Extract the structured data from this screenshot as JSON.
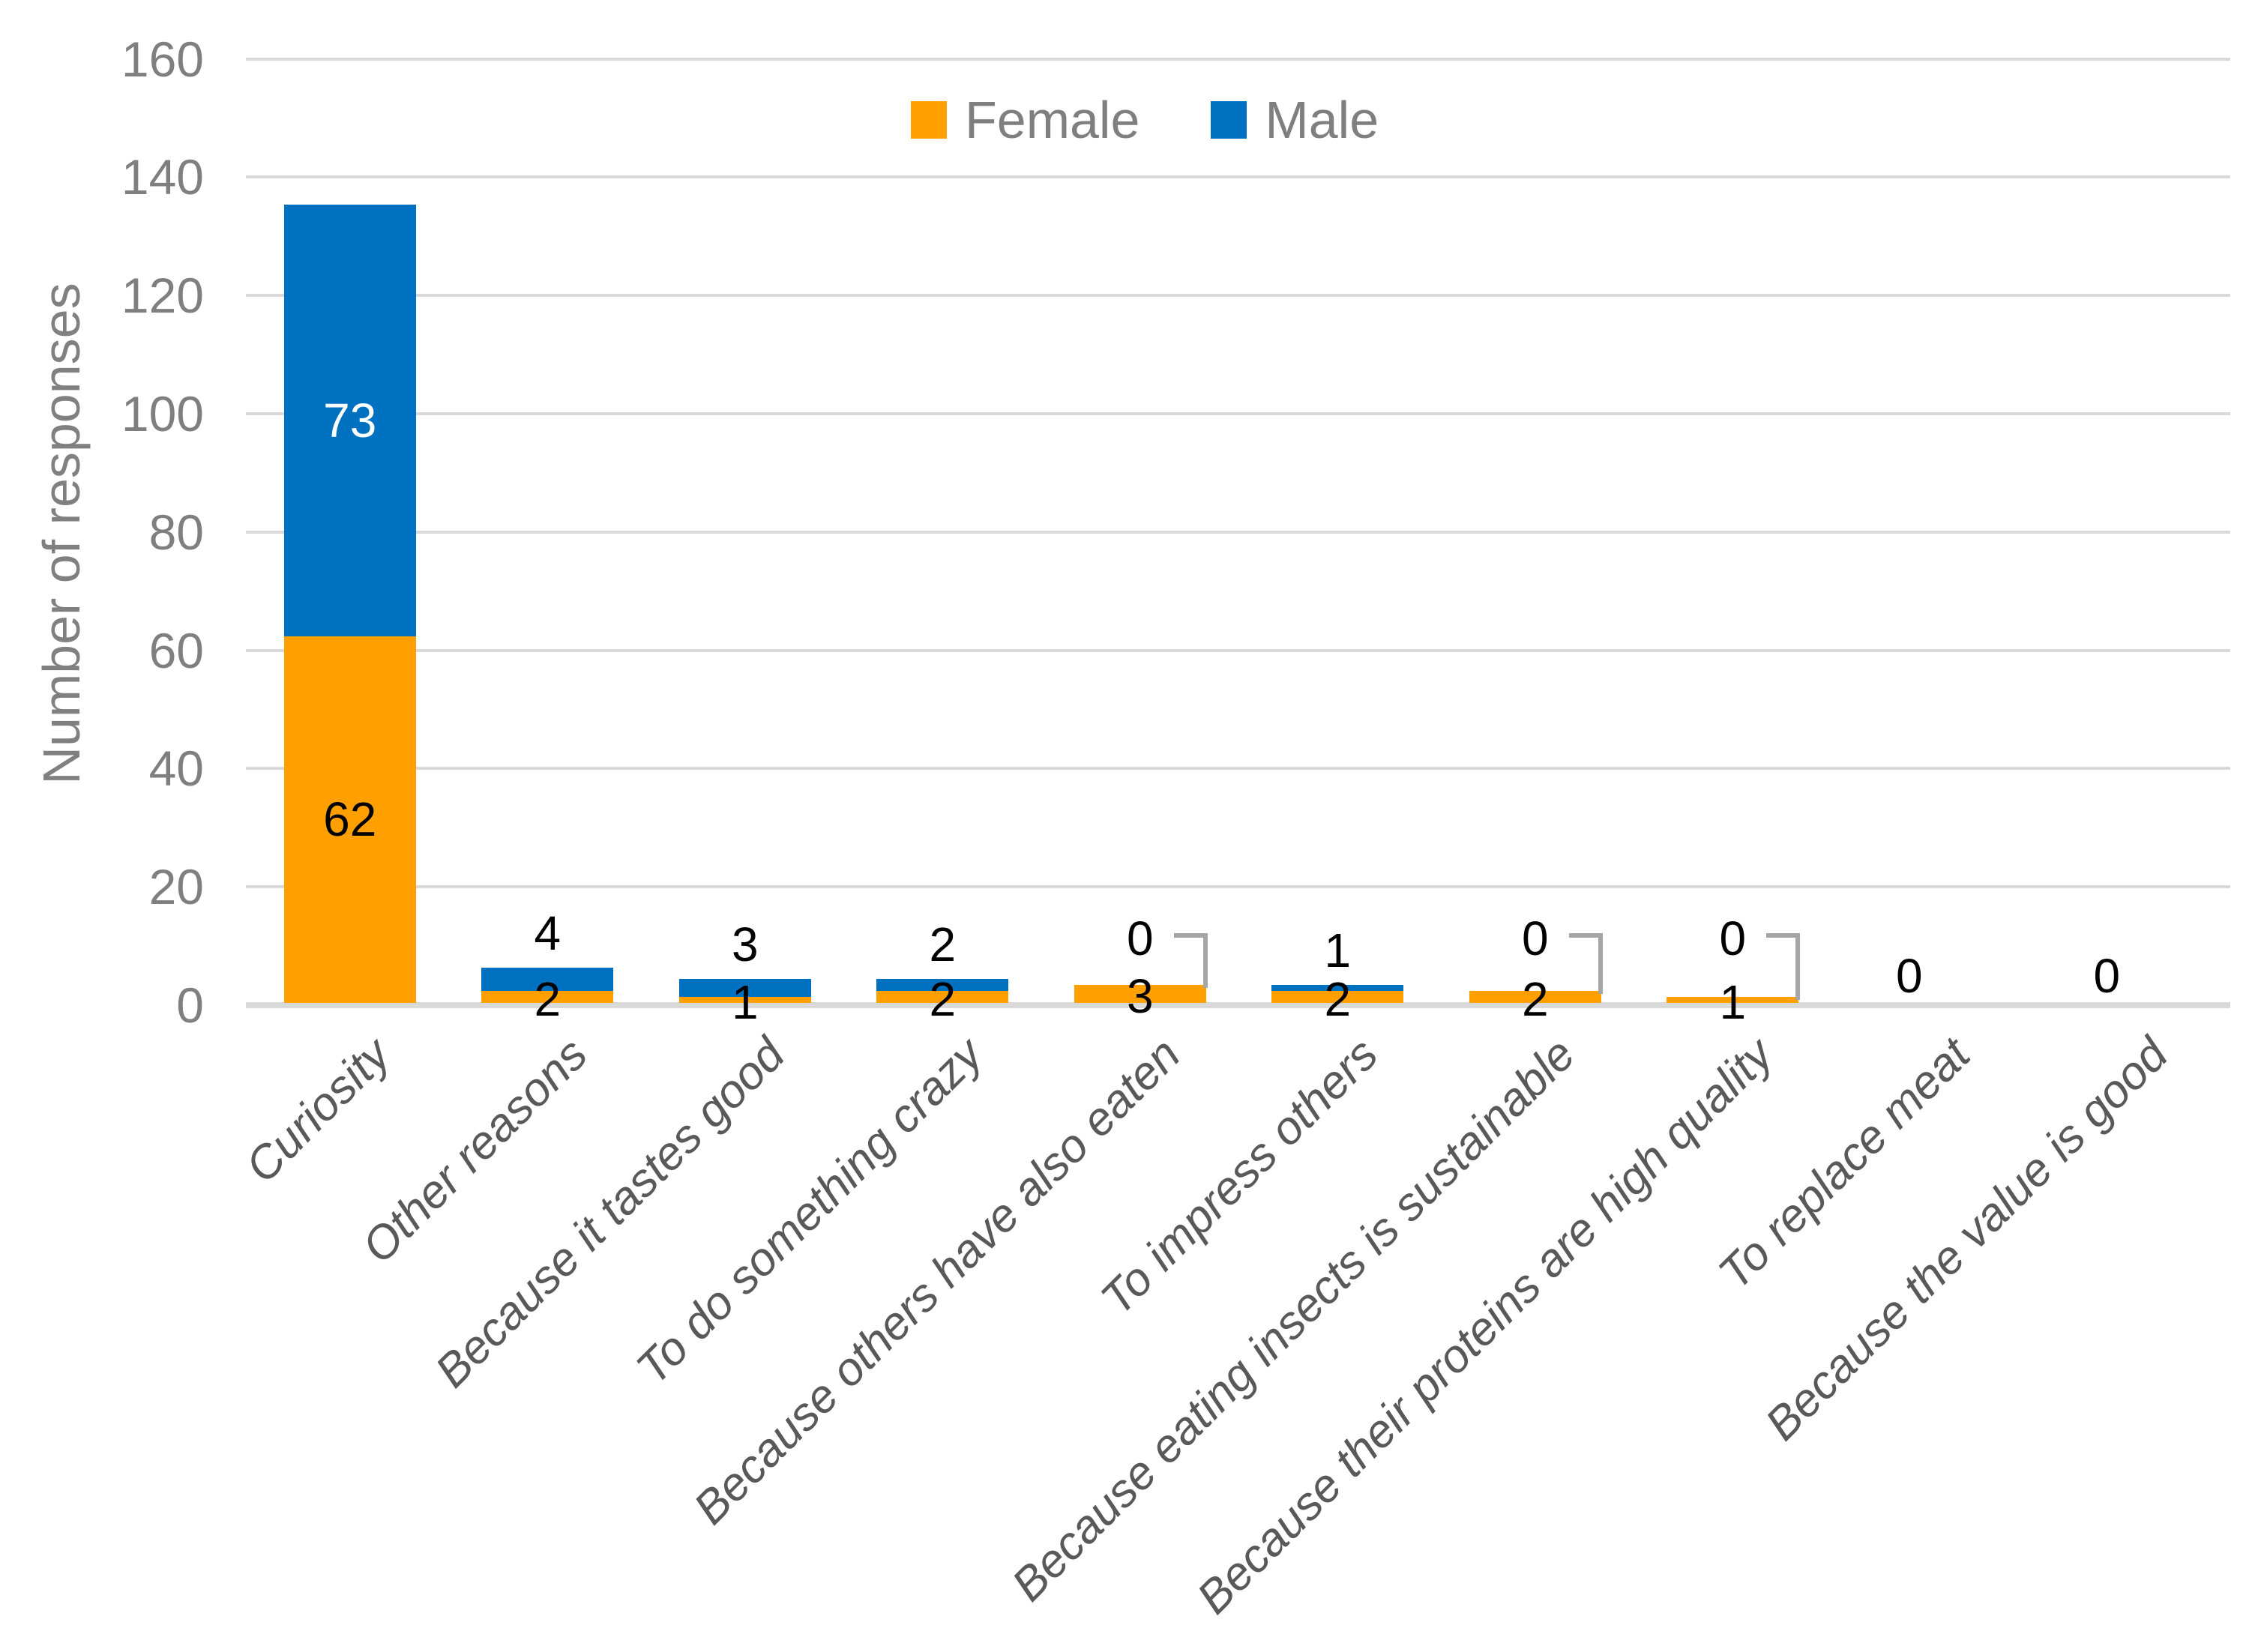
{
  "chart_data": {
    "type": "bar",
    "stacked": true,
    "title": "",
    "xlabel": "",
    "ylabel": "Number of responses",
    "ylim": [
      0,
      160
    ],
    "ytick_step": 20,
    "yticks": [
      0,
      20,
      40,
      60,
      80,
      100,
      120,
      140,
      160
    ],
    "grid": true,
    "legend_position": "top-center",
    "categories": [
      "Curiosity",
      "Other reasons",
      "Because it tastes good",
      "To do something crazy",
      "Because others have also eaten",
      "To impress others",
      "Because eating insects is sustainable",
      "Because their proteins are high quality",
      "To replace meat",
      "Because the value is good"
    ],
    "series": [
      {
        "name": "Female",
        "color": "#FFA000",
        "values": [
          62,
          2,
          1,
          2,
          3,
          2,
          2,
          1,
          0,
          0
        ]
      },
      {
        "name": "Male",
        "color": "#0070C0",
        "values": [
          73,
          4,
          3,
          2,
          0,
          1,
          0,
          0,
          0,
          0
        ]
      }
    ],
    "data_labels": true,
    "callout_categories": [
      "Because others have also eaten",
      "Because eating insects is sustainable",
      "Because their proteins are high quality"
    ]
  },
  "legend": {
    "items": [
      {
        "label": "Female",
        "color": "#FFA000"
      },
      {
        "label": "Male",
        "color": "#0070C0"
      }
    ]
  },
  "colors": {
    "female": "#FFA000",
    "male": "#0070C0",
    "gridline": "#D9D9D9",
    "axis_line": "#D9D9D9",
    "tick_text": "#7F7F7F",
    "legend_text": "#7F7F7F",
    "x_label_text": "#595959",
    "y_title_text": "#808080",
    "data_label": "#000000",
    "data_label_on_male": "#FFFFFF",
    "leader_line": "#A6A6A6"
  }
}
